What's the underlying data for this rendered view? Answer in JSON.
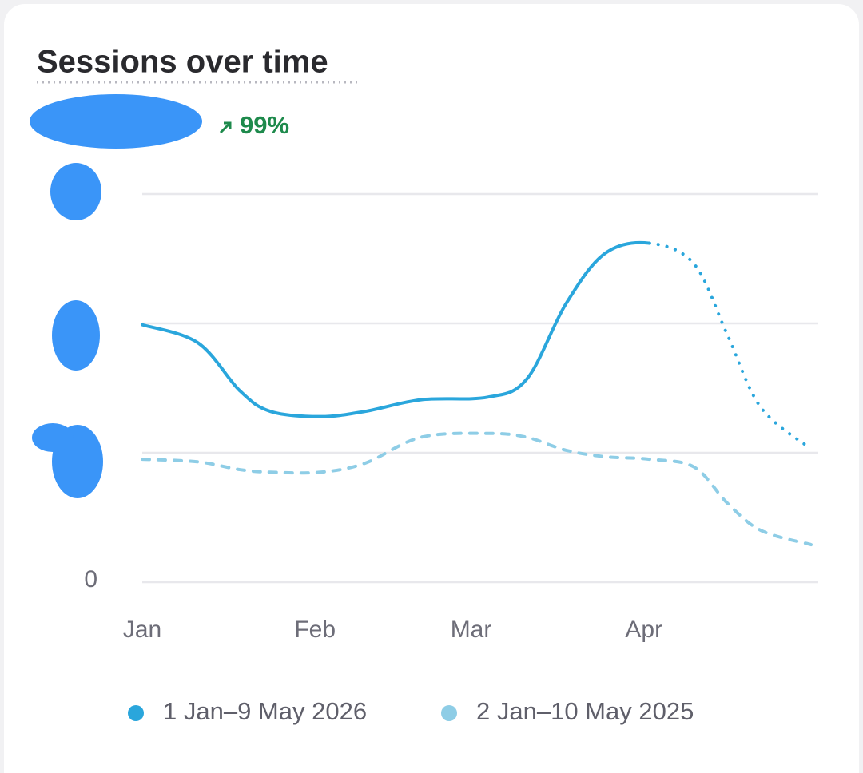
{
  "chart_data": {
    "type": "line",
    "title": "Sessions over time",
    "change": "99%",
    "change_color": "#1e8a4c",
    "x": [
      0,
      10,
      17.5,
      23,
      32,
      40,
      50,
      62,
      69,
      76,
      83,
      91,
      99,
      105,
      111,
      120
    ],
    "xlim": [
      0,
      120
    ],
    "xticks": [
      {
        "value": 0,
        "label": "Jan"
      },
      {
        "value": 31,
        "label": "Feb"
      },
      {
        "value": 59,
        "label": "Mar"
      },
      {
        "value": 90,
        "label": "Apr"
      }
    ],
    "ylim": [
      0,
      3
    ],
    "yticks": [
      {
        "value": 0,
        "label": "0"
      },
      {
        "value": 1,
        "label": null
      },
      {
        "value": 2,
        "label": null
      },
      {
        "value": 3,
        "label": null
      }
    ],
    "grid": true,
    "series": [
      {
        "name": "1 Jan–9 May 2026",
        "color": "#2aa6dc",
        "incomplete_from": 91,
        "values": [
          1.99,
          1.85,
          1.48,
          1.32,
          1.28,
          1.32,
          1.41,
          1.43,
          1.57,
          2.15,
          2.54,
          2.62,
          2.46,
          1.91,
          1.35,
          1.03
        ]
      },
      {
        "name": "2 Jan–10 May 2025",
        "color": "#8ecde6",
        "dashed": true,
        "values": [
          0.95,
          0.93,
          0.87,
          0.85,
          0.85,
          0.92,
          1.12,
          1.15,
          1.12,
          1.02,
          0.97,
          0.95,
          0.89,
          0.61,
          0.4,
          0.29
        ]
      }
    ]
  }
}
